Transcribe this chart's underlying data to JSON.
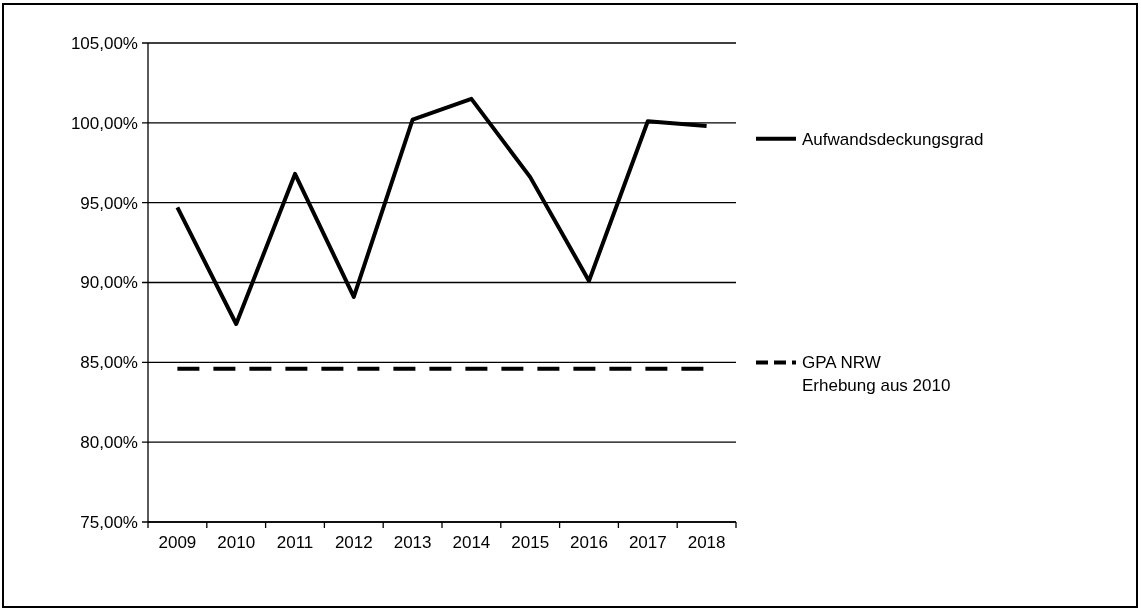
{
  "chart_data": {
    "type": "line",
    "categories": [
      "2009",
      "2010",
      "2011",
      "2012",
      "2013",
      "2014",
      "2015",
      "2016",
      "2017",
      "2018"
    ],
    "series": [
      {
        "name": "Aufwandsdeckungsgrad",
        "color": "#000000",
        "line_style": "solid",
        "values": [
          94.7,
          87.4,
          96.8,
          89.1,
          100.2,
          101.5,
          96.6,
          90.1,
          100.1,
          99.8
        ]
      },
      {
        "name": "GPA NRW\nErhebung aus 2010",
        "color": "#000000",
        "line_style": "dashed",
        "values": [
          84.6,
          84.6,
          84.6,
          84.6,
          84.6,
          84.6,
          84.6,
          84.6,
          84.6,
          84.6
        ]
      }
    ],
    "ylim": [
      75,
      105
    ],
    "yticks": [
      {
        "value": 75,
        "label": "75,00%"
      },
      {
        "value": 80,
        "label": "80,00%"
      },
      {
        "value": 85,
        "label": "85,00%"
      },
      {
        "value": 90,
        "label": "90,00%"
      },
      {
        "value": 95,
        "label": "95,00%"
      },
      {
        "value": 100,
        "label": "100,00%"
      },
      {
        "value": 105,
        "label": "105,00%"
      }
    ],
    "grid": "y",
    "legend": "right"
  }
}
